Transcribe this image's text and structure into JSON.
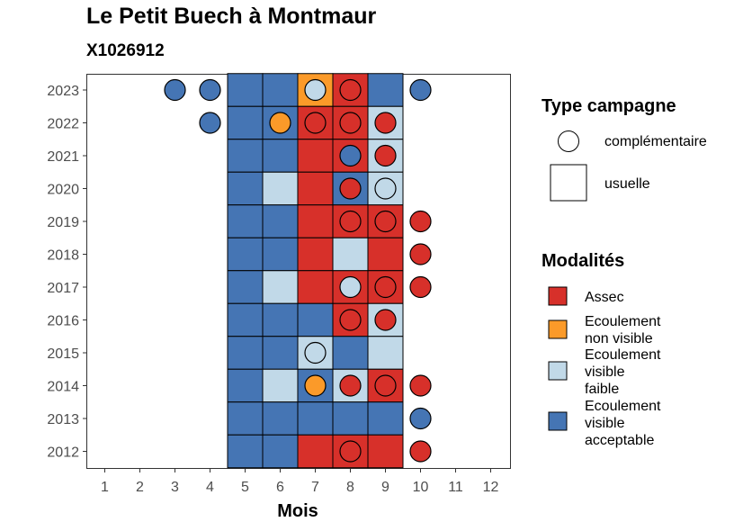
{
  "title": "Le Petit Buech à Montmaur",
  "subtitle": "X1026912",
  "chart_data": {
    "type": "heatmap",
    "xlabel": "Mois",
    "ylabel": "",
    "x_ticks": [
      "1",
      "2",
      "3",
      "4",
      "5",
      "6",
      "7",
      "8",
      "9",
      "10",
      "11",
      "12"
    ],
    "y_ticks": [
      "2012",
      "2013",
      "2014",
      "2015",
      "2016",
      "2017",
      "2018",
      "2019",
      "2020",
      "2021",
      "2022",
      "2023"
    ],
    "grid": false,
    "legend_position": "right",
    "modalites": [
      {
        "key": "A",
        "label": "Assec",
        "color": "#d7302a"
      },
      {
        "key": "N",
        "label": "Ecoulement non visible",
        "color": "#fb9a29"
      },
      {
        "key": "F",
        "label": "Ecoulement visible faible",
        "color": "#c1d9e8"
      },
      {
        "key": "V",
        "label": "Ecoulement visible acceptable",
        "color": "#4575b4"
      }
    ],
    "type_campagne": [
      {
        "key": "complementaire",
        "label": "complémentaire",
        "shape": "circle"
      },
      {
        "key": "usuelle",
        "label": "usuelle",
        "shape": "square"
      }
    ],
    "legend_titles": {
      "type_campagne": "Type campagne",
      "modalites": "Modalités"
    },
    "usuelle": [
      {
        "year": 2023,
        "values": {
          "5": "V",
          "6": "V",
          "7": "N",
          "8": "A",
          "9": "V"
        }
      },
      {
        "year": 2022,
        "values": {
          "5": "V",
          "6": "V",
          "7": "A",
          "8": "A",
          "9": "F"
        }
      },
      {
        "year": 2021,
        "values": {
          "5": "V",
          "6": "V",
          "7": "A",
          "8": "A",
          "9": "F"
        }
      },
      {
        "year": 2020,
        "values": {
          "5": "V",
          "6": "F",
          "7": "A",
          "8": "V",
          "9": "F"
        }
      },
      {
        "year": 2019,
        "values": {
          "5": "V",
          "6": "V",
          "7": "A",
          "8": "A",
          "9": "A"
        }
      },
      {
        "year": 2018,
        "values": {
          "5": "V",
          "6": "V",
          "7": "A",
          "8": "F",
          "9": "A"
        }
      },
      {
        "year": 2017,
        "values": {
          "5": "V",
          "6": "F",
          "7": "A",
          "8": "A",
          "9": "A"
        }
      },
      {
        "year": 2016,
        "values": {
          "5": "V",
          "6": "V",
          "7": "V",
          "8": "A",
          "9": "F"
        }
      },
      {
        "year": 2015,
        "values": {
          "5": "V",
          "6": "V",
          "7": "F",
          "8": "V",
          "9": "F"
        }
      },
      {
        "year": 2014,
        "values": {
          "5": "V",
          "6": "F",
          "7": "V",
          "8": "F",
          "9": "A"
        }
      },
      {
        "year": 2013,
        "values": {
          "5": "V",
          "6": "V",
          "7": "V",
          "8": "V",
          "9": "V"
        }
      },
      {
        "year": 2012,
        "values": {
          "5": "V",
          "6": "V",
          "7": "A",
          "8": "A",
          "9": "A"
        }
      }
    ],
    "complementaire": [
      {
        "year": 2023,
        "month": 3,
        "value": "V"
      },
      {
        "year": 2023,
        "month": 4,
        "value": "V"
      },
      {
        "year": 2023,
        "month": 7,
        "value": "F"
      },
      {
        "year": 2023,
        "month": 8,
        "value": "A"
      },
      {
        "year": 2023,
        "month": 10,
        "value": "V"
      },
      {
        "year": 2022,
        "month": 4,
        "value": "V"
      },
      {
        "year": 2022,
        "month": 6,
        "value": "N"
      },
      {
        "year": 2022,
        "month": 7,
        "value": "A"
      },
      {
        "year": 2022,
        "month": 8,
        "value": "A"
      },
      {
        "year": 2022,
        "month": 9,
        "value": "A"
      },
      {
        "year": 2021,
        "month": 8,
        "value": "V"
      },
      {
        "year": 2021,
        "month": 9,
        "value": "A"
      },
      {
        "year": 2020,
        "month": 8,
        "value": "A"
      },
      {
        "year": 2020,
        "month": 9,
        "value": "F"
      },
      {
        "year": 2019,
        "month": 8,
        "value": "A"
      },
      {
        "year": 2019,
        "month": 9,
        "value": "A"
      },
      {
        "year": 2019,
        "month": 10,
        "value": "A"
      },
      {
        "year": 2018,
        "month": 10,
        "value": "A"
      },
      {
        "year": 2017,
        "month": 8,
        "value": "F"
      },
      {
        "year": 2017,
        "month": 9,
        "value": "A"
      },
      {
        "year": 2017,
        "month": 10,
        "value": "A"
      },
      {
        "year": 2016,
        "month": 8,
        "value": "A"
      },
      {
        "year": 2016,
        "month": 9,
        "value": "A"
      },
      {
        "year": 2015,
        "month": 7,
        "value": "F"
      },
      {
        "year": 2014,
        "month": 7,
        "value": "N"
      },
      {
        "year": 2014,
        "month": 8,
        "value": "A"
      },
      {
        "year": 2014,
        "month": 9,
        "value": "A"
      },
      {
        "year": 2014,
        "month": 10,
        "value": "A"
      },
      {
        "year": 2013,
        "month": 10,
        "value": "V"
      },
      {
        "year": 2012,
        "month": 8,
        "value": "A"
      },
      {
        "year": 2012,
        "month": 10,
        "value": "A"
      }
    ]
  }
}
